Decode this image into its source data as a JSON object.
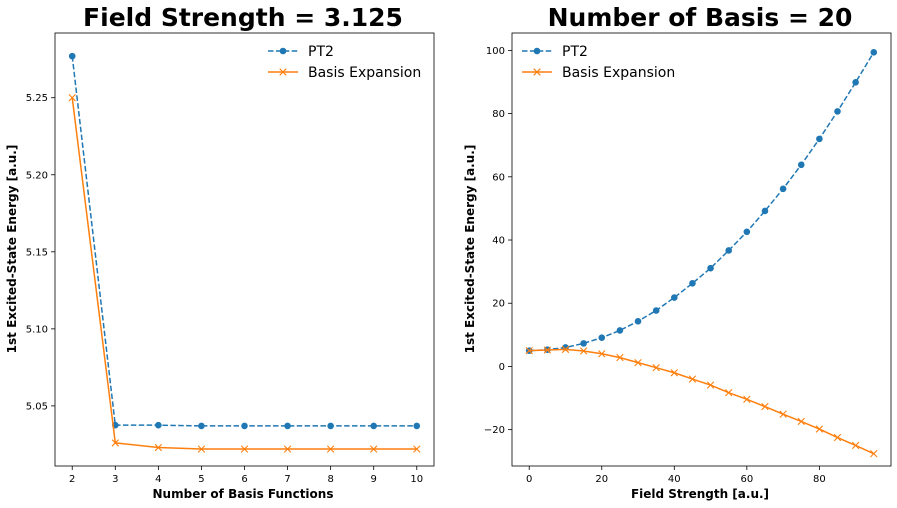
{
  "colors": {
    "pt2": "#1f77b4",
    "basis": "#ff7f0e"
  },
  "chart_data": [
    {
      "type": "line",
      "title": "Field Strength = 3.125",
      "xlabel": "Number of Basis Functions",
      "ylabel": "1st Excited-State Energy [a.u.]",
      "xlim": [
        1.6,
        10.4
      ],
      "ylim": [
        5.011,
        5.292
      ],
      "xticks": [
        2,
        3,
        4,
        5,
        6,
        7,
        8,
        9,
        10
      ],
      "yticks": [
        5.05,
        5.1,
        5.15,
        5.2,
        5.25
      ],
      "ytick_labels": [
        "5.05",
        "5.10",
        "5.15",
        "5.20",
        "5.25"
      ],
      "legend": "top-right",
      "x": [
        2,
        3,
        4,
        5,
        6,
        7,
        8,
        9,
        10
      ],
      "series": [
        {
          "name": "PT2",
          "style": "dashed",
          "marker": "circle",
          "values": [
            5.277,
            5.0375,
            5.0375,
            5.037,
            5.037,
            5.037,
            5.037,
            5.037,
            5.037
          ]
        },
        {
          "name": "Basis Expansion",
          "style": "solid",
          "marker": "x",
          "values": [
            5.25,
            5.026,
            5.023,
            5.022,
            5.022,
            5.022,
            5.022,
            5.022,
            5.022
          ]
        }
      ]
    },
    {
      "type": "line",
      "title": "Number of Basis = 20",
      "xlabel": "Field Strength [a.u.]",
      "ylabel": "1st Excited-State Energy [a.u.]",
      "xlim": [
        -4.75,
        99.75
      ],
      "ylim": [
        -31.5,
        105.5
      ],
      "xticks": [
        0,
        20,
        40,
        60,
        80
      ],
      "yticks": [
        -20,
        0,
        20,
        40,
        60,
        80,
        100
      ],
      "ytick_labels": [
        "−20",
        "0",
        "20",
        "40",
        "60",
        "80",
        "100"
      ],
      "legend": "top-left",
      "x": [
        0,
        5,
        10,
        15,
        20,
        25,
        30,
        35,
        40,
        45,
        50,
        55,
        60,
        65,
        70,
        75,
        80,
        85,
        90,
        95
      ],
      "series": [
        {
          "name": "PT2",
          "style": "dashed",
          "marker": "circle",
          "values": [
            5,
            5.3,
            6,
            7.3,
            9.1,
            11.4,
            14.3,
            17.7,
            21.8,
            26.3,
            31.1,
            36.7,
            42.6,
            49.2,
            56.2,
            63.8,
            72.0,
            80.7,
            89.9,
            99.4
          ]
        },
        {
          "name": "Basis Expansion",
          "style": "solid",
          "marker": "x",
          "values": [
            5,
            5.2,
            5.4,
            4.9,
            4.0,
            2.8,
            1.2,
            -0.4,
            -2.0,
            -4.0,
            -5.9,
            -8.3,
            -10.4,
            -12.7,
            -15.1,
            -17.4,
            -19.8,
            -22.5,
            -25.0,
            -27.6
          ]
        }
      ]
    }
  ]
}
